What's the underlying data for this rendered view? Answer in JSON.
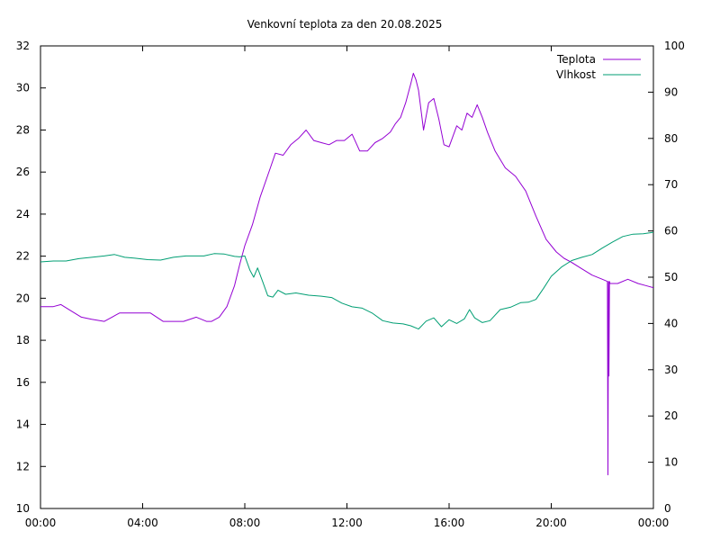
{
  "chart_data": {
    "type": "line",
    "title": "Venkovní teplota za den 20.08.2025",
    "xlabel": "",
    "ylabel": "",
    "y2label": "",
    "x_ticks": [
      "00:00",
      "04:00",
      "08:00",
      "12:00",
      "16:00",
      "20:00",
      "00:00"
    ],
    "xlim_hours": [
      0,
      24
    ],
    "ylim": [
      10,
      32
    ],
    "y_ticks": [
      10,
      12,
      14,
      16,
      18,
      20,
      22,
      24,
      26,
      28,
      30,
      32
    ],
    "y2lim": [
      0,
      100
    ],
    "y2_ticks": [
      0,
      10,
      20,
      30,
      40,
      50,
      60,
      70,
      80,
      90,
      100
    ],
    "legend_position": "top-right",
    "grid": false,
    "series": [
      {
        "name": "Teplota",
        "axis": "left",
        "color": "#9400d3",
        "x": [
          0,
          0.5,
          0.8,
          1.2,
          1.6,
          2.0,
          2.5,
          2.8,
          3.1,
          3.4,
          3.8,
          4.3,
          4.8,
          5.1,
          5.6,
          6.1,
          6.5,
          6.7,
          7.0,
          7.3,
          7.6,
          7.8,
          8.0,
          8.3,
          8.6,
          9.0,
          9.2,
          9.5,
          9.8,
          10.1,
          10.4,
          10.7,
          11.0,
          11.3,
          11.6,
          11.9,
          12.2,
          12.5,
          12.8,
          13.1,
          13.4,
          13.7,
          13.9,
          14.1,
          14.3,
          14.5,
          14.6,
          14.7,
          14.8,
          15.0,
          15.2,
          15.4,
          15.6,
          15.8,
          16.0,
          16.3,
          16.5,
          16.7,
          16.9,
          17.1,
          17.3,
          17.5,
          17.8,
          18.2,
          18.6,
          19.0,
          19.4,
          19.8,
          20.2,
          20.5,
          20.8,
          21.2,
          21.6,
          22.0,
          22.2,
          22.22,
          22.24,
          22.26,
          22.28,
          22.3,
          22.6,
          23.0,
          23.4,
          23.7,
          24.0
        ],
        "values": [
          19.6,
          19.6,
          19.7,
          19.4,
          19.1,
          19.0,
          18.9,
          19.1,
          19.3,
          19.3,
          19.3,
          19.3,
          18.9,
          18.9,
          18.9,
          19.1,
          18.9,
          18.9,
          19.1,
          19.6,
          20.6,
          21.6,
          22.5,
          23.5,
          24.8,
          26.2,
          26.9,
          26.8,
          27.3,
          27.6,
          28.0,
          27.5,
          27.4,
          27.3,
          27.5,
          27.5,
          27.8,
          27.0,
          27.0,
          27.4,
          27.6,
          27.9,
          28.3,
          28.6,
          29.3,
          30.2,
          30.7,
          30.4,
          29.9,
          28.0,
          29.3,
          29.5,
          28.5,
          27.3,
          27.2,
          28.2,
          28.0,
          28.8,
          28.6,
          29.2,
          28.6,
          27.9,
          27.0,
          26.2,
          25.8,
          25.1,
          23.9,
          22.8,
          22.2,
          21.9,
          21.7,
          21.4,
          21.1,
          20.9,
          20.8,
          11.6,
          20.8,
          16.3,
          20.8,
          20.7,
          20.7,
          20.9,
          20.7,
          20.6,
          20.5
        ]
      },
      {
        "name": "Vlhkost",
        "axis": "right",
        "color": "#009e73",
        "x": [
          0,
          0.5,
          1.0,
          1.5,
          2.0,
          2.5,
          2.9,
          3.3,
          3.7,
          4.2,
          4.7,
          5.2,
          5.7,
          6.0,
          6.4,
          6.8,
          7.2,
          7.6,
          7.8,
          8.0,
          8.2,
          8.35,
          8.5,
          8.7,
          8.9,
          9.1,
          9.3,
          9.6,
          10.0,
          10.5,
          11.0,
          11.4,
          11.8,
          12.2,
          12.6,
          13.0,
          13.4,
          13.8,
          14.2,
          14.5,
          14.8,
          15.1,
          15.4,
          15.7,
          16.0,
          16.3,
          16.6,
          16.8,
          17.0,
          17.3,
          17.6,
          18.0,
          18.4,
          18.8,
          19.1,
          19.4,
          19.7,
          20.0,
          20.4,
          20.8,
          21.2,
          21.6,
          22.0,
          22.4,
          22.8,
          23.2,
          23.6,
          24.0
        ],
        "values": [
          53.3,
          53.5,
          53.5,
          54.0,
          54.3,
          54.6,
          54.9,
          54.3,
          54.1,
          53.8,
          53.7,
          54.3,
          54.6,
          54.6,
          54.6,
          55.1,
          55.0,
          54.5,
          54.4,
          54.6,
          51.5,
          50.0,
          52.0,
          49.0,
          46.0,
          45.7,
          47.2,
          46.3,
          46.6,
          46.1,
          45.9,
          45.6,
          44.4,
          43.6,
          43.3,
          42.2,
          40.6,
          40.1,
          39.9,
          39.5,
          38.8,
          40.5,
          41.2,
          39.3,
          40.8,
          40.0,
          41.0,
          43.0,
          41.2,
          40.2,
          40.6,
          43.0,
          43.5,
          44.5,
          44.6,
          45.2,
          47.6,
          50.2,
          52.2,
          53.6,
          54.3,
          54.9,
          56.3,
          57.6,
          58.8,
          59.3,
          59.4,
          59.7
        ]
      }
    ]
  }
}
